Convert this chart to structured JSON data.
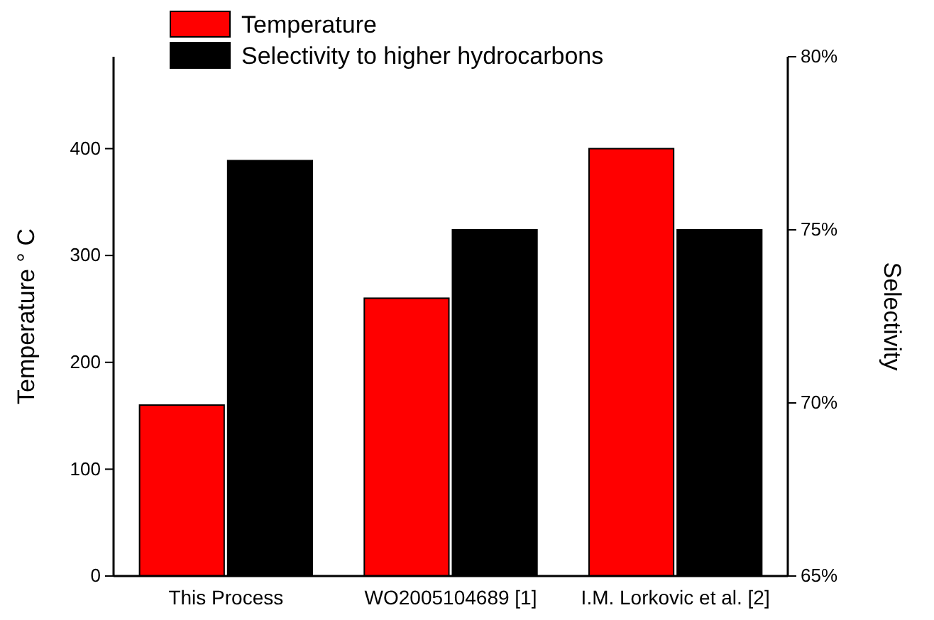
{
  "chart_data": {
    "type": "bar",
    "categories": [
      "This Process",
      "WO2005104689 [1]",
      "I.M. Lorkovic et al. [2]"
    ],
    "series": [
      {
        "name": "Temperature",
        "color": "#ff0000",
        "values": [
          160,
          260,
          400
        ]
      },
      {
        "name": "Selectivity to higher hydrocarbons",
        "color": "#000000",
        "values": [
          77,
          75,
          75
        ],
        "axis": "y2"
      }
    ],
    "ylabel": "Temperature ° C",
    "y2label": "Selectivity",
    "ylim": [
      0,
      486
    ],
    "yticks": [
      0,
      100,
      200,
      300,
      400
    ],
    "y2lim": [
      65,
      80
    ],
    "y2ticks": [
      {
        "value": 65,
        "label": "65%"
      },
      {
        "value": 70,
        "label": "70%"
      },
      {
        "value": 75,
        "label": "75%"
      },
      {
        "value": 80,
        "label": "80%"
      }
    ],
    "legend": "top left",
    "grid": false
  }
}
